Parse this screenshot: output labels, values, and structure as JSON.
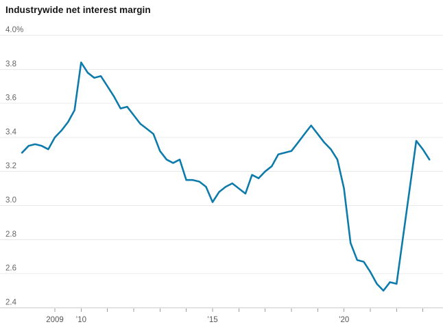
{
  "header": {
    "title": "Industrywide net interest margin"
  },
  "colors": {
    "line": "#0c7bab",
    "gridline": "#e8e8e8",
    "axis_line": "#c4c4c4",
    "tick": "#9b9b9b",
    "y_label": "#666666",
    "x_label": "#555555",
    "title": "#141414",
    "background": "#ffffff"
  },
  "chart_data": {
    "type": "line",
    "title": "Industrywide net interest margin",
    "unit": "%",
    "xlabel": "",
    "ylabel": "",
    "ylim": [
      2.4,
      4.0
    ],
    "xlim_years": [
      2006.9,
      2023.8
    ],
    "grid": "horizontal",
    "legend": "none",
    "y_ticks": [
      {
        "value": 4.0,
        "label": "4.0%"
      },
      {
        "value": 3.8,
        "label": "3.8"
      },
      {
        "value": 3.6,
        "label": "3.6"
      },
      {
        "value": 3.4,
        "label": "3.4"
      },
      {
        "value": 3.2,
        "label": "3.2"
      },
      {
        "value": 3.0,
        "label": "3.0"
      },
      {
        "value": 2.8,
        "label": "2.8"
      },
      {
        "value": 2.6,
        "label": "2.6"
      },
      {
        "value": 2.4,
        "label": "2.4"
      }
    ],
    "x_ticks": [
      {
        "year": 2009,
        "label": "2009"
      },
      {
        "year": 2010,
        "label": "’10"
      },
      {
        "year": 2011,
        "label": ""
      },
      {
        "year": 2012,
        "label": ""
      },
      {
        "year": 2013,
        "label": ""
      },
      {
        "year": 2014,
        "label": ""
      },
      {
        "year": 2015,
        "label": "’15"
      },
      {
        "year": 2016,
        "label": ""
      },
      {
        "year": 2017,
        "label": ""
      },
      {
        "year": 2018,
        "label": ""
      },
      {
        "year": 2019,
        "label": ""
      },
      {
        "year": 2020,
        "label": "’20"
      },
      {
        "year": 2021,
        "label": ""
      },
      {
        "year": 2022,
        "label": ""
      },
      {
        "year": 2023,
        "label": ""
      }
    ],
    "series": [
      {
        "name": "Industrywide net interest margin",
        "color": "#0c7bab",
        "frequency": "quarterly",
        "points": [
          [
            2007.75,
            3.31
          ],
          [
            2008.0,
            3.35
          ],
          [
            2008.25,
            3.36
          ],
          [
            2008.5,
            3.35
          ],
          [
            2008.75,
            3.33
          ],
          [
            2009.0,
            3.4
          ],
          [
            2009.25,
            3.44
          ],
          [
            2009.5,
            3.49
          ],
          [
            2009.75,
            3.56
          ],
          [
            2010.0,
            3.84
          ],
          [
            2010.25,
            3.78
          ],
          [
            2010.5,
            3.75
          ],
          [
            2010.75,
            3.76
          ],
          [
            2011.0,
            3.7
          ],
          [
            2011.25,
            3.64
          ],
          [
            2011.5,
            3.57
          ],
          [
            2011.75,
            3.58
          ],
          [
            2012.0,
            3.53
          ],
          [
            2012.25,
            3.48
          ],
          [
            2012.5,
            3.45
          ],
          [
            2012.75,
            3.42
          ],
          [
            2013.0,
            3.32
          ],
          [
            2013.25,
            3.27
          ],
          [
            2013.5,
            3.25
          ],
          [
            2013.75,
            3.27
          ],
          [
            2014.0,
            3.15
          ],
          [
            2014.25,
            3.15
          ],
          [
            2014.5,
            3.14
          ],
          [
            2014.75,
            3.11
          ],
          [
            2015.0,
            3.02
          ],
          [
            2015.25,
            3.08
          ],
          [
            2015.5,
            3.11
          ],
          [
            2015.75,
            3.13
          ],
          [
            2016.0,
            3.1
          ],
          [
            2016.25,
            3.07
          ],
          [
            2016.5,
            3.18
          ],
          [
            2016.75,
            3.16
          ],
          [
            2017.0,
            3.2
          ],
          [
            2017.25,
            3.23
          ],
          [
            2017.5,
            3.3
          ],
          [
            2017.75,
            3.31
          ],
          [
            2018.0,
            3.32
          ],
          [
            2018.25,
            3.37
          ],
          [
            2018.5,
            3.42
          ],
          [
            2018.75,
            3.47
          ],
          [
            2019.0,
            3.42
          ],
          [
            2019.25,
            3.37
          ],
          [
            2019.5,
            3.33
          ],
          [
            2019.75,
            3.27
          ],
          [
            2020.0,
            3.1
          ],
          [
            2020.25,
            2.78
          ],
          [
            2020.5,
            2.68
          ],
          [
            2020.75,
            2.67
          ],
          [
            2021.0,
            2.61
          ],
          [
            2021.25,
            2.54
          ],
          [
            2021.5,
            2.5
          ],
          [
            2021.75,
            2.55
          ],
          [
            2022.0,
            2.54
          ],
          [
            2022.25,
            2.82
          ],
          [
            2022.5,
            3.1
          ],
          [
            2022.75,
            3.38
          ],
          [
            2023.0,
            3.33
          ],
          [
            2023.25,
            3.27
          ]
        ]
      }
    ]
  }
}
